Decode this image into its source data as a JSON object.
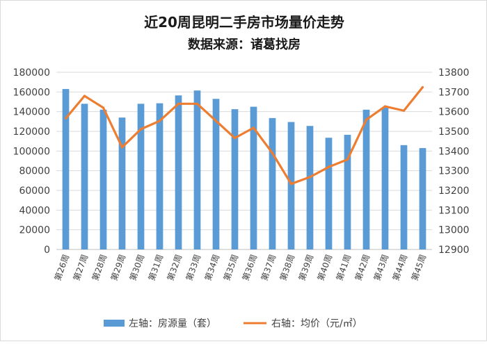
{
  "chart_data": {
    "type": "bar",
    "title": "近20周昆明二手房市场量价走势",
    "subtitle": "数据来源：诸葛找房",
    "categories": [
      "第26周",
      "第27周",
      "第28周",
      "第29周",
      "第30周",
      "第31周",
      "第32周",
      "第33周",
      "第34周",
      "第35周",
      "第36周",
      "第37周",
      "第38周",
      "第39周",
      "第40周",
      "第41周",
      "第42周",
      "第43周",
      "第44周",
      "第45周"
    ],
    "series": [
      {
        "name": "左轴：房源量（套）",
        "type": "bar",
        "axis": "left",
        "color": "#5b9bd5",
        "values": [
          163000,
          148000,
          142000,
          134000,
          148000,
          148500,
          156500,
          161500,
          153000,
          142500,
          145000,
          133500,
          129500,
          125500,
          113500,
          116500,
          142000,
          144000,
          106000,
          103000
        ]
      },
      {
        "name": "右轴：均价（元/㎡）",
        "type": "line",
        "axis": "right",
        "color": "#ed7d31",
        "values": [
          13566,
          13680,
          13620,
          13419,
          13511,
          13553,
          13640,
          13640,
          13553,
          13466,
          13518,
          13390,
          13233,
          13268,
          13319,
          13357,
          13559,
          13627,
          13605,
          13724
        ]
      }
    ],
    "y_left": {
      "min": 0,
      "max": 180000,
      "step": 20000,
      "ticks": [
        "0",
        "20000",
        "40000",
        "60000",
        "80000",
        "100000",
        "120000",
        "140000",
        "160000",
        "180000"
      ]
    },
    "y_right": {
      "min": 12900,
      "max": 13800,
      "step": 100,
      "ticks": [
        "12900",
        "13000",
        "13100",
        "13200",
        "13300",
        "13400",
        "13500",
        "13600",
        "13700",
        "13800"
      ]
    },
    "grid": true,
    "legend_position": "bottom"
  }
}
